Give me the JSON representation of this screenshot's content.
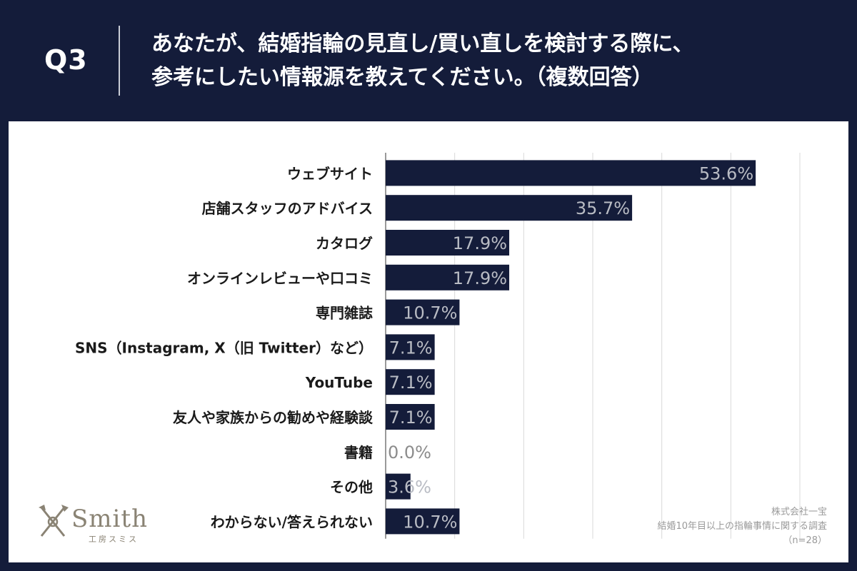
{
  "header": {
    "q_label": "Q3",
    "question_line1": "あなたが、結婚指輪の見直し/買い直しを検討する際に、",
    "question_line2": "参考にしたい情報源を教えてください。（複数回答）"
  },
  "chart_data": {
    "type": "bar",
    "orientation": "horizontal",
    "categories": [
      "ウェブサイト",
      "店舗スタッフのアドバイス",
      "カタログ",
      "オンラインレビューや口コミ",
      "専門雑誌",
      "SNS（Instagram, X（旧 Twitter）など）",
      "YouTube",
      "友人や家族からの勧めや経験談",
      "書籍",
      "その他",
      "わからない/答えられない"
    ],
    "values": [
      53.6,
      35.7,
      17.9,
      17.9,
      10.7,
      7.1,
      7.1,
      7.1,
      0.0,
      3.6,
      10.7
    ],
    "value_labels": [
      "53.6%",
      "35.7%",
      "17.9%",
      "17.9%",
      "10.7%",
      "7.1%",
      "7.1%",
      "7.1%",
      "0.0%",
      "3.6%",
      "10.7%"
    ],
    "xlim": [
      0,
      60
    ],
    "grid": true,
    "colors": {
      "bar": "#141c3a",
      "grid": "#d9d9d9",
      "label": "#1a1a1a",
      "value_text": "#b9bcc4",
      "value_text_zero": "#8c8c8c"
    }
  },
  "logo": {
    "word": "Smith",
    "sub": "工房スミス"
  },
  "source": {
    "line1": "株式会社一宝",
    "line2": "結婚10年目以上の指輪事情に関する調査",
    "line3": "（n=28）"
  }
}
